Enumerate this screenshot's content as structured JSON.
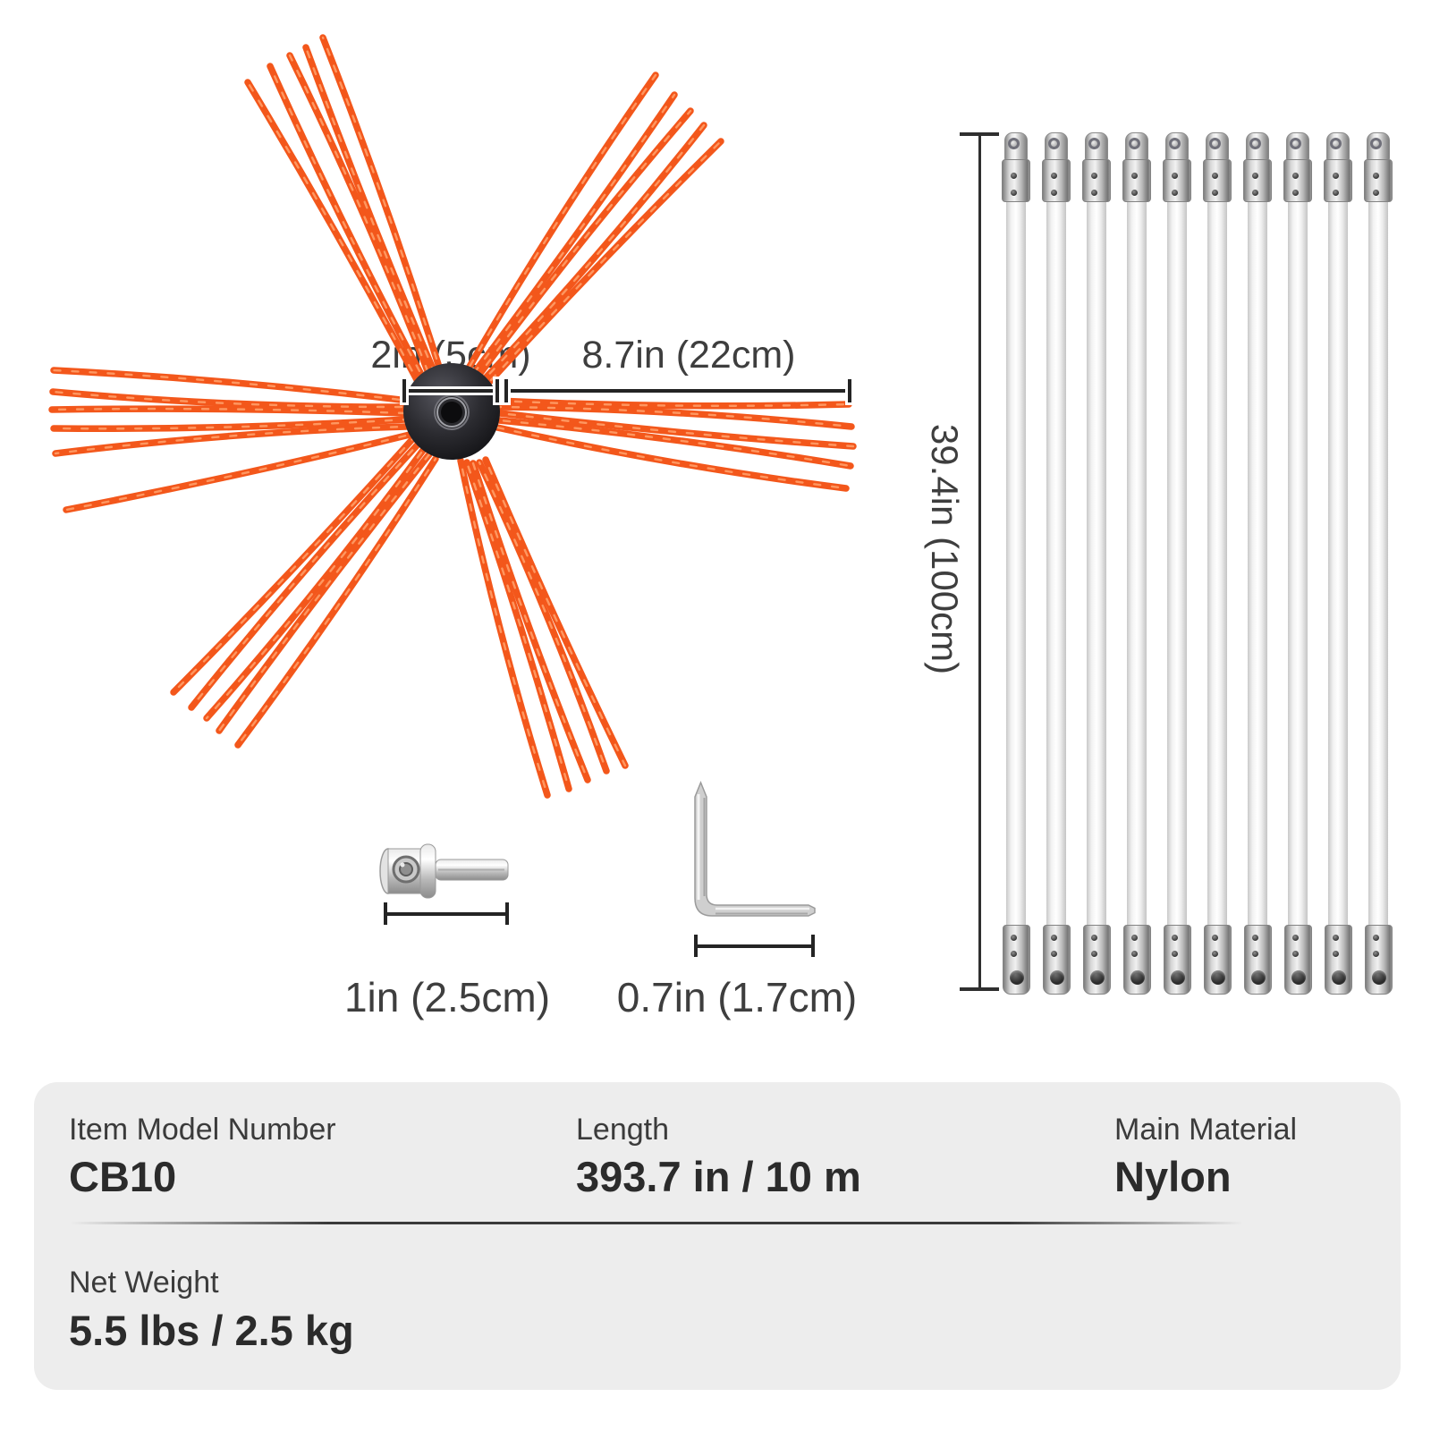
{
  "figure": {
    "brush": {
      "hub_width_label": "2in (5cm)",
      "bristle_length_label": "8.7in (22cm)",
      "bundle_count": 6
    },
    "rods": {
      "count": 10,
      "length_label": "39.4in (100cm)"
    },
    "adapter": {
      "length_label": "1in (2.5cm)"
    },
    "hex_key": {
      "length_label": "0.7in (1.7cm)"
    }
  },
  "colors": {
    "bristle": "#F3571B",
    "bristle_highlight": "#FF9E68",
    "hub_dark": "#26262B",
    "dimension_line": "#242424",
    "label_text": "#3E3E3E",
    "card_bg": "#EDEDED",
    "metal": "#C9C9C9"
  },
  "spec_card": {
    "rows": [
      {
        "cells": [
          {
            "label": "Item Model Number",
            "value": "CB10"
          },
          {
            "label": "Length",
            "value": "393.7 in / 10 m"
          },
          {
            "label": "Main Material",
            "value": "Nylon"
          }
        ]
      },
      {
        "cells": [
          {
            "label": "Net Weight",
            "value": "5.5 lbs / 2.5 kg"
          }
        ]
      }
    ]
  }
}
